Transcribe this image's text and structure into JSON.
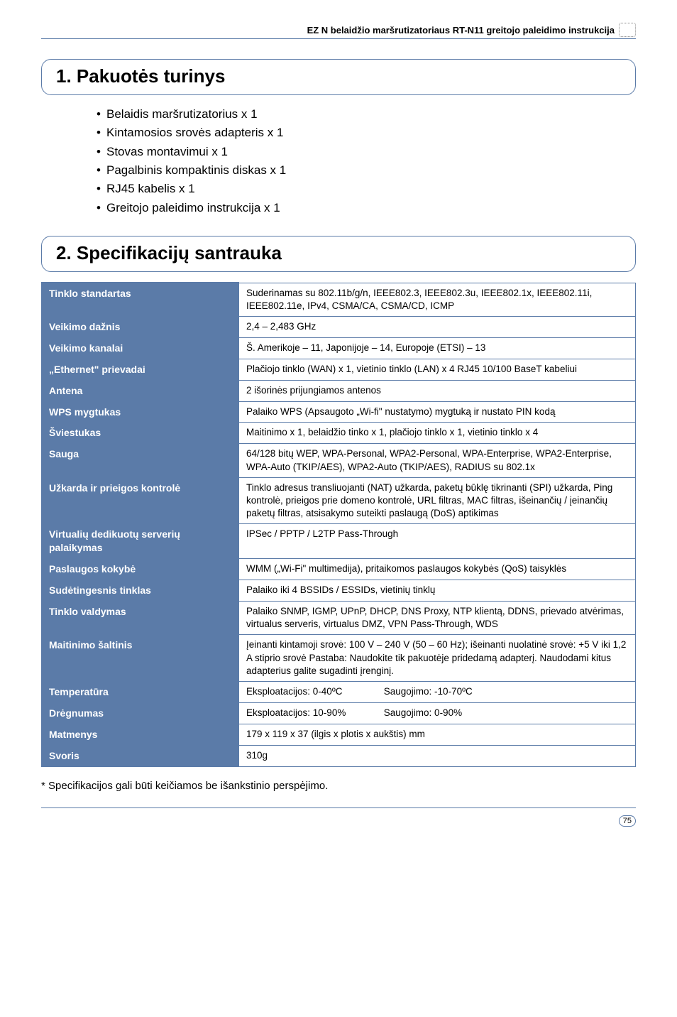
{
  "header": {
    "title": "EZ N belaidžio maršrutizatoriaus RT-N11 greitojo paleidimo instrukcija"
  },
  "section1": {
    "heading": "1. Pakuotės turinys",
    "items": [
      "Belaidis maršrutizatorius x 1",
      "Kintamosios srovės adapteris x 1",
      "Stovas montavimui x 1",
      "Pagalbinis kompaktinis diskas x 1",
      "RJ45 kabelis x 1",
      "Greitojo paleidimo instrukcija x 1"
    ]
  },
  "section2": {
    "heading": "2. Specifikacijų santrauka"
  },
  "specs": {
    "rows": [
      {
        "label": "Tinklo standartas",
        "value": "Suderinamas su 802.11b/g/n, IEEE802.3, IEEE802.3u, IEEE802.1x, IEEE802.11i, IEEE802.11e, IPv4, CSMA/CA, CSMA/CD, ICMP"
      },
      {
        "label": "Veikimo dažnis",
        "value": "2,4 – 2,483 GHz"
      },
      {
        "label": "Veikimo kanalai",
        "value": "Š. Amerikoje – 11, Japonijoje – 14, Europoje (ETSI) – 13"
      },
      {
        "label": "„Ethernet\" prievadai",
        "value": "Plačiojo tinklo (WAN) x 1, vietinio tinklo (LAN) x 4 RJ45 10/100 BaseT kabeliui"
      },
      {
        "label": "Antena",
        "value": "2 išorinės prijungiamos antenos"
      },
      {
        "label": "WPS mygtukas",
        "value": "Palaiko WPS (Apsaugoto „Wi-fi\" nustatymo) mygtuką ir nustato PIN kodą"
      },
      {
        "label": "Šviestukas",
        "value": "Maitinimo x 1, belaidžio tinko x 1, plačiojo tinklo x 1, vietinio tinklo x 4"
      },
      {
        "label": "Sauga",
        "value": "64/128 bitų WEP, WPA-Personal, WPA2-Personal, WPA-Enterprise, WPA2-Enterprise, WPA-Auto (TKIP/AES), WPA2-Auto (TKIP/AES), RADIUS su 802.1x"
      },
      {
        "label": "Užkarda ir prieigos kontrolė",
        "value": "Tinklo adresus transliuojanti (NAT) užkarda, paketų būklę tikrinanti (SPI) užkarda, Ping kontrolė, prieigos prie domeno kontrolė, URL filtras, MAC filtras, išeinančių / įeinančių paketų filtras, atsisakymo suteikti paslaugą (DoS) aptikimas"
      },
      {
        "label": "Virtualių dedikuotų serverių palaikymas",
        "value": "IPSec / PPTP / L2TP Pass-Through"
      },
      {
        "label": "Paslaugos kokybė",
        "value": "WMM („Wi-Fi\" multimedija), pritaikomos paslaugos kokybės (QoS) taisyklės"
      },
      {
        "label": "Sudėtingesnis tinklas",
        "value": "Palaiko iki 4 BSSIDs / ESSIDs, vietinių tinklų"
      },
      {
        "label": "Tinklo valdymas",
        "value": "Palaiko SNMP, IGMP, UPnP, DHCP, DNS Proxy, NTP klientą, DDNS, prievado atvėrimas, virtualus serveris, virtualus DMZ, VPN Pass-Through, WDS"
      },
      {
        "label": "Maitinimo šaltinis",
        "value": "Įeinanti kintamoji srovė: 100 V – 240 V (50 – 60 Hz); išeinanti nuolatinė srovė: +5 V iki 1,2 A stiprio srovė Pastaba: Naudokite tik pakuotėje pridedamą adapterį. Naudodami kitus adapterius galite sugadinti įrenginį."
      },
      {
        "label": "Matmenys",
        "value": "179 x 119 x 37 (ilgis x plotis x aukštis) mm"
      },
      {
        "label": "Svoris",
        "value": "310g"
      }
    ],
    "temperature": {
      "label": "Temperatūra",
      "op": "Eksploatacijos: 0-40ºC",
      "store": "Saugojimo: -10-70ºC"
    },
    "humidity": {
      "label": "Drėgnumas",
      "op": "Eksploatacijos: 10-90%",
      "store": "Saugojimo: 0-90%"
    }
  },
  "footnote": "* Specifikacijos gali būti keičiamos be išankstinio perspėjimo.",
  "page": "75"
}
